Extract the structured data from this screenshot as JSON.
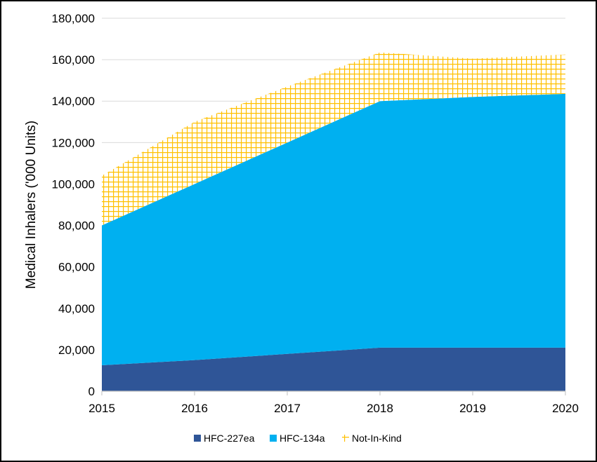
{
  "chart_data": {
    "type": "area",
    "stacked": true,
    "title": "",
    "xlabel": "",
    "ylabel": "Medical Inhalers ('000 Units)",
    "x": [
      "2015",
      "2016",
      "2017",
      "2018",
      "2019",
      "2020"
    ],
    "ylim": [
      0,
      180000
    ],
    "yticks": [
      0,
      20000,
      40000,
      60000,
      80000,
      100000,
      120000,
      140000,
      160000,
      180000
    ],
    "ytick_labels": [
      "0",
      "20,000",
      "40,000",
      "60,000",
      "80,000",
      "100,000",
      "120,000",
      "140,000",
      "160,000",
      "180,000"
    ],
    "grid": "horizontal",
    "legend": "bottom",
    "series": [
      {
        "name": "HFC-227ea",
        "color": "#2f5597",
        "fill": "solid",
        "values": [
          12500,
          15000,
          18000,
          21000,
          21000,
          21000
        ]
      },
      {
        "name": "HFC-134a",
        "color": "#00b0f0",
        "fill": "solid",
        "values": [
          67500,
          85000,
          102000,
          119000,
          121000,
          122500
        ]
      },
      {
        "name": "Not-In-Kind",
        "color": "#ffc000",
        "fill": "crosshatch",
        "values": [
          24000,
          30000,
          27000,
          23500,
          18500,
          19000
        ]
      }
    ]
  }
}
